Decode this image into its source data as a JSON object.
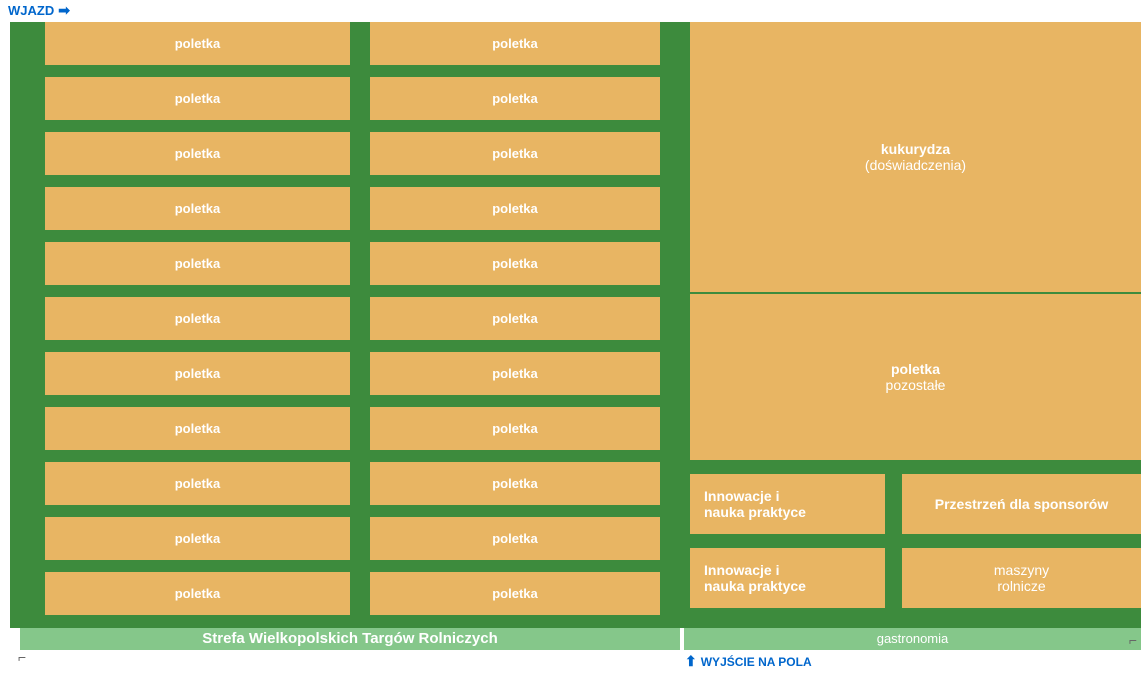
{
  "colors": {
    "field_bg": "#3d8b3d",
    "plot_bg": "#e8b563",
    "footer_bg": "#85c78a",
    "text_white": "#ffffff",
    "label_blue": "#0066cc"
  },
  "entry": {
    "label": "WJAZD",
    "arrow": "➡"
  },
  "exit": {
    "label": "WYJŚCIE NA POLA",
    "arrow": "⬆"
  },
  "plots": {
    "left": [
      "poletka",
      "poletka",
      "poletka",
      "poletka",
      "poletka",
      "poletka",
      "poletka",
      "poletka",
      "poletka",
      "poletka",
      "poletka"
    ],
    "mid": [
      "poletka",
      "poletka",
      "poletka",
      "poletka",
      "poletka",
      "poletka",
      "poletka",
      "poletka",
      "poletka",
      "poletka",
      "poletka"
    ]
  },
  "kukurydza": {
    "line1": "kukurydza",
    "line2": "(doświadczenia)"
  },
  "pozostale": {
    "line1": "poletka",
    "line2": "pozostałe"
  },
  "innowacje1": {
    "line1": "Innowacje i",
    "line2": "nauka praktyce"
  },
  "sponsorow": {
    "line1": "Przestrzeń dla sponsorów"
  },
  "innowacje2": {
    "line1": "Innowacje i",
    "line2": "nauka praktyce"
  },
  "maszyny": {
    "line1": "maszyny",
    "line2": "rolnicze"
  },
  "footer": {
    "left": "Strefa Wielkopolskich Targów Rolniczych",
    "right": "gastronomia"
  }
}
